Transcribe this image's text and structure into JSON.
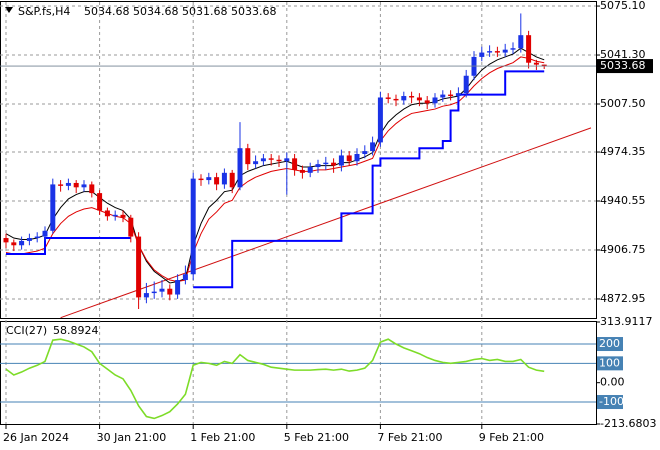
{
  "chart_data": [
    {
      "type": "candlestick",
      "symbol": "S&P.fs,H4",
      "categories": [
        "26 Jan 2024",
        null,
        null,
        null,
        null,
        null,
        null,
        null,
        null,
        null,
        null,
        null,
        "30 Jan 21:00",
        null,
        null,
        null,
        null,
        null,
        null,
        null,
        null,
        null,
        null,
        null,
        "1 Feb 21:00",
        null,
        null,
        null,
        null,
        null,
        null,
        null,
        null,
        null,
        null,
        null,
        "5 Feb 21:00",
        null,
        null,
        null,
        null,
        null,
        null,
        null,
        null,
        null,
        null,
        null,
        "7 Feb 21:00",
        null,
        null,
        null,
        null,
        null,
        null,
        null,
        null,
        null,
        null,
        null,
        null,
        "9 Feb 21:00",
        null,
        null,
        null,
        null,
        null,
        null,
        null,
        null
      ],
      "open": [
        4915,
        4912,
        4910,
        4913,
        4915,
        4916,
        4920,
        4952,
        4951,
        4953,
        4950,
        4952,
        4946,
        4934,
        4930,
        4931,
        4929,
        4916,
        4874,
        4877,
        4878,
        4880,
        4876,
        4886,
        4890,
        4956,
        4955,
        4957,
        4952,
        4960,
        4950,
        4977,
        4966,
        4968,
        4970,
        4969,
        4968,
        4970,
        4962,
        4960,
        4964,
        4966,
        4967,
        4965,
        4972,
        4968,
        4973,
        4975,
        4981,
        5012,
        5011,
        5010,
        5013,
        5012,
        5010,
        5008,
        5012,
        5014,
        5013,
        5015,
        5027,
        5040,
        5043,
        5044,
        5043,
        5045,
        5046,
        5055,
        5036,
        5034.68
      ],
      "high": [
        4918,
        4914,
        4916,
        4918,
        4919,
        4923,
        4956,
        4955,
        4956,
        4955,
        4955,
        4954,
        4948,
        4936,
        4934,
        4934,
        4931,
        4919,
        4884,
        4885,
        4886,
        4883,
        4890,
        4896,
        4960,
        4959,
        4960,
        4960,
        4963,
        4962,
        4995,
        4980,
        4972,
        4973,
        4973,
        4972,
        4974,
        4973,
        4965,
        4967,
        4969,
        4971,
        4970,
        4976,
        4975,
        4977,
        4979,
        4985,
        5016,
        5015,
        5014,
        5016,
        5016,
        5015,
        5013,
        5015,
        5017,
        5017,
        5019,
        5031,
        5044,
        5047,
        5048,
        5047,
        5049,
        5050,
        5070,
        5058,
        5038,
        5034.68
      ],
      "low": [
        4908,
        4906,
        4907,
        4910,
        4912,
        4913,
        4918,
        4947,
        4948,
        4946,
        4947,
        4943,
        4931,
        4927,
        4927,
        4926,
        4912,
        4866,
        4870,
        4873,
        4874,
        4872,
        4873,
        4883,
        4886,
        4951,
        4952,
        4948,
        4949,
        4946,
        4948,
        4962,
        4963,
        4965,
        4965,
        4964,
        4945,
        4958,
        4956,
        4957,
        4960,
        4962,
        4960,
        4961,
        4965,
        4965,
        4970,
        4972,
        4978,
        5008,
        5006,
        5007,
        5008,
        5006,
        5004,
        5005,
        5009,
        5010,
        5010,
        5012,
        5024,
        5037,
        5040,
        5040,
        5040,
        5042,
        5043,
        5032,
        5031,
        5031.68
      ],
      "close": [
        4912,
        4910,
        4913,
        4915,
        4916,
        4920,
        4952,
        4951,
        4953,
        4950,
        4952,
        4946,
        4934,
        4930,
        4931,
        4929,
        4916,
        4874,
        4877,
        4878,
        4880,
        4876,
        4886,
        4890,
        4956,
        4955,
        4957,
        4952,
        4960,
        4950,
        4977,
        4966,
        4968,
        4970,
        4969,
        4968,
        4970,
        4962,
        4960,
        4964,
        4966,
        4967,
        4965,
        4972,
        4968,
        4973,
        4975,
        4981,
        5012,
        5011,
        5010,
        5013,
        5012,
        5010,
        5008,
        5012,
        5014,
        5013,
        5015,
        5027,
        5040,
        5043,
        5044,
        5043,
        5045,
        5046,
        5055,
        5036,
        5034.68,
        5033.68
      ],
      "up_color": "#1a33e6",
      "down_color": "#e00000",
      "series": [
        {
          "color": "#000000",
          "values": [
            4918,
            4915,
            4914,
            4914,
            4915,
            4917,
            4928,
            4936,
            4942,
            4945,
            4947,
            4947,
            4943,
            4939,
            4936,
            4934,
            4928,
            4910,
            4899,
            4892,
            4888,
            4884,
            4885,
            4887,
            4910,
            4925,
            4936,
            4941,
            4947,
            4948,
            4958,
            4961,
            4963,
            4965,
            4966,
            4967,
            4968,
            4966,
            4964,
            4964,
            4965,
            4965,
            4965,
            4967,
            4967,
            4969,
            4971,
            4974,
            4987,
            4995,
            5000,
            5004,
            5007,
            5008,
            5008,
            5009,
            5011,
            5012,
            5013,
            5018,
            5025,
            5031,
            5035,
            5038,
            5040,
            5042,
            5046,
            5043,
            5040,
            5038
          ]
        },
        {
          "color": "#e00000",
          "values": [
            4905,
            4904,
            4904,
            4905,
            4906,
            4908,
            4918,
            4925,
            4930,
            4933,
            4935,
            4936,
            4934,
            4932,
            4930,
            4929,
            4925,
            4910,
            4900,
            4893,
            4889,
            4886,
            4885,
            4886,
            4905,
            4918,
            4928,
            4933,
            4939,
            4941,
            4950,
            4954,
            4957,
            4959,
            4961,
            4962,
            4963,
            4962,
            4961,
            4961,
            4962,
            4962,
            4963,
            4964,
            4965,
            4966,
            4968,
            4970,
            4982,
            4989,
            4994,
            4998,
            5001,
            5002,
            5003,
            5004,
            5006,
            5007,
            5009,
            5014,
            5020,
            5025,
            5029,
            5032,
            5034,
            5036,
            5040,
            5039,
            5037,
            5036
          ]
        },
        {
          "color": "#0000ff",
          "style": "step",
          "values": [
            4904,
            4904,
            4904,
            4904,
            4904,
            4915,
            4915,
            4915,
            4915,
            4915,
            4915,
            4915,
            4915,
            4915,
            4915,
            4915,
            4915,
            null,
            null,
            null,
            null,
            null,
            null,
            null,
            4881,
            4881,
            4881,
            4881,
            4881,
            4913,
            4913,
            4913,
            4913,
            4913,
            4913,
            4913,
            4913,
            4913,
            4913,
            4913,
            4913,
            4913,
            4913,
            4932,
            4932,
            4932,
            4932,
            4965,
            4970,
            4970,
            4970,
            4970,
            4970,
            4977,
            4977,
            4977,
            4982,
            5003,
            5014,
            5014,
            5014,
            5014,
            5014,
            5014,
            5030,
            5030,
            5030,
            5030,
            5030,
            5030
          ]
        }
      ],
      "trendline": {
        "color": "#d01010",
        "x": [
          7,
          75
        ],
        "values": [
          4860,
          4991
        ]
      },
      "ylim": [
        4859.8,
        5077.9
      ],
      "yticks": [
        {
          "value": 5075.1,
          "label": "5075.10"
        },
        {
          "value": 5041.3,
          "label": "5041.30"
        },
        {
          "value": 5007.5,
          "label": "5007.50"
        },
        4974.35,
        4940.55,
        4906.75,
        4872.95
      ],
      "grid": true
    },
    {
      "type": "line",
      "title": "CCI(27)",
      "color": "#7ddc28",
      "values": [
        70,
        40,
        55,
        75,
        90,
        110,
        220,
        225,
        215,
        200,
        185,
        160,
        100,
        70,
        40,
        20,
        -40,
        -120,
        -175,
        -185,
        -170,
        -150,
        -110,
        -60,
        90,
        105,
        100,
        90,
        110,
        100,
        145,
        115,
        105,
        95,
        80,
        75,
        70,
        65,
        65,
        65,
        68,
        70,
        65,
        70,
        60,
        65,
        75,
        115,
        210,
        225,
        200,
        180,
        165,
        150,
        130,
        115,
        105,
        100,
        105,
        110,
        120,
        125,
        115,
        120,
        110,
        110,
        120,
        80,
        65,
        58.8924
      ],
      "ylim": [
        -213.6803,
        313.9117
      ],
      "yticks": [
        313.9117,
        200,
        100,
        {
          "value": 0,
          "label": "0.00"
        },
        -100,
        -213.6803
      ],
      "levels": [
        200,
        100,
        -100
      ],
      "level_color": "#4682b4"
    }
  ]
}
